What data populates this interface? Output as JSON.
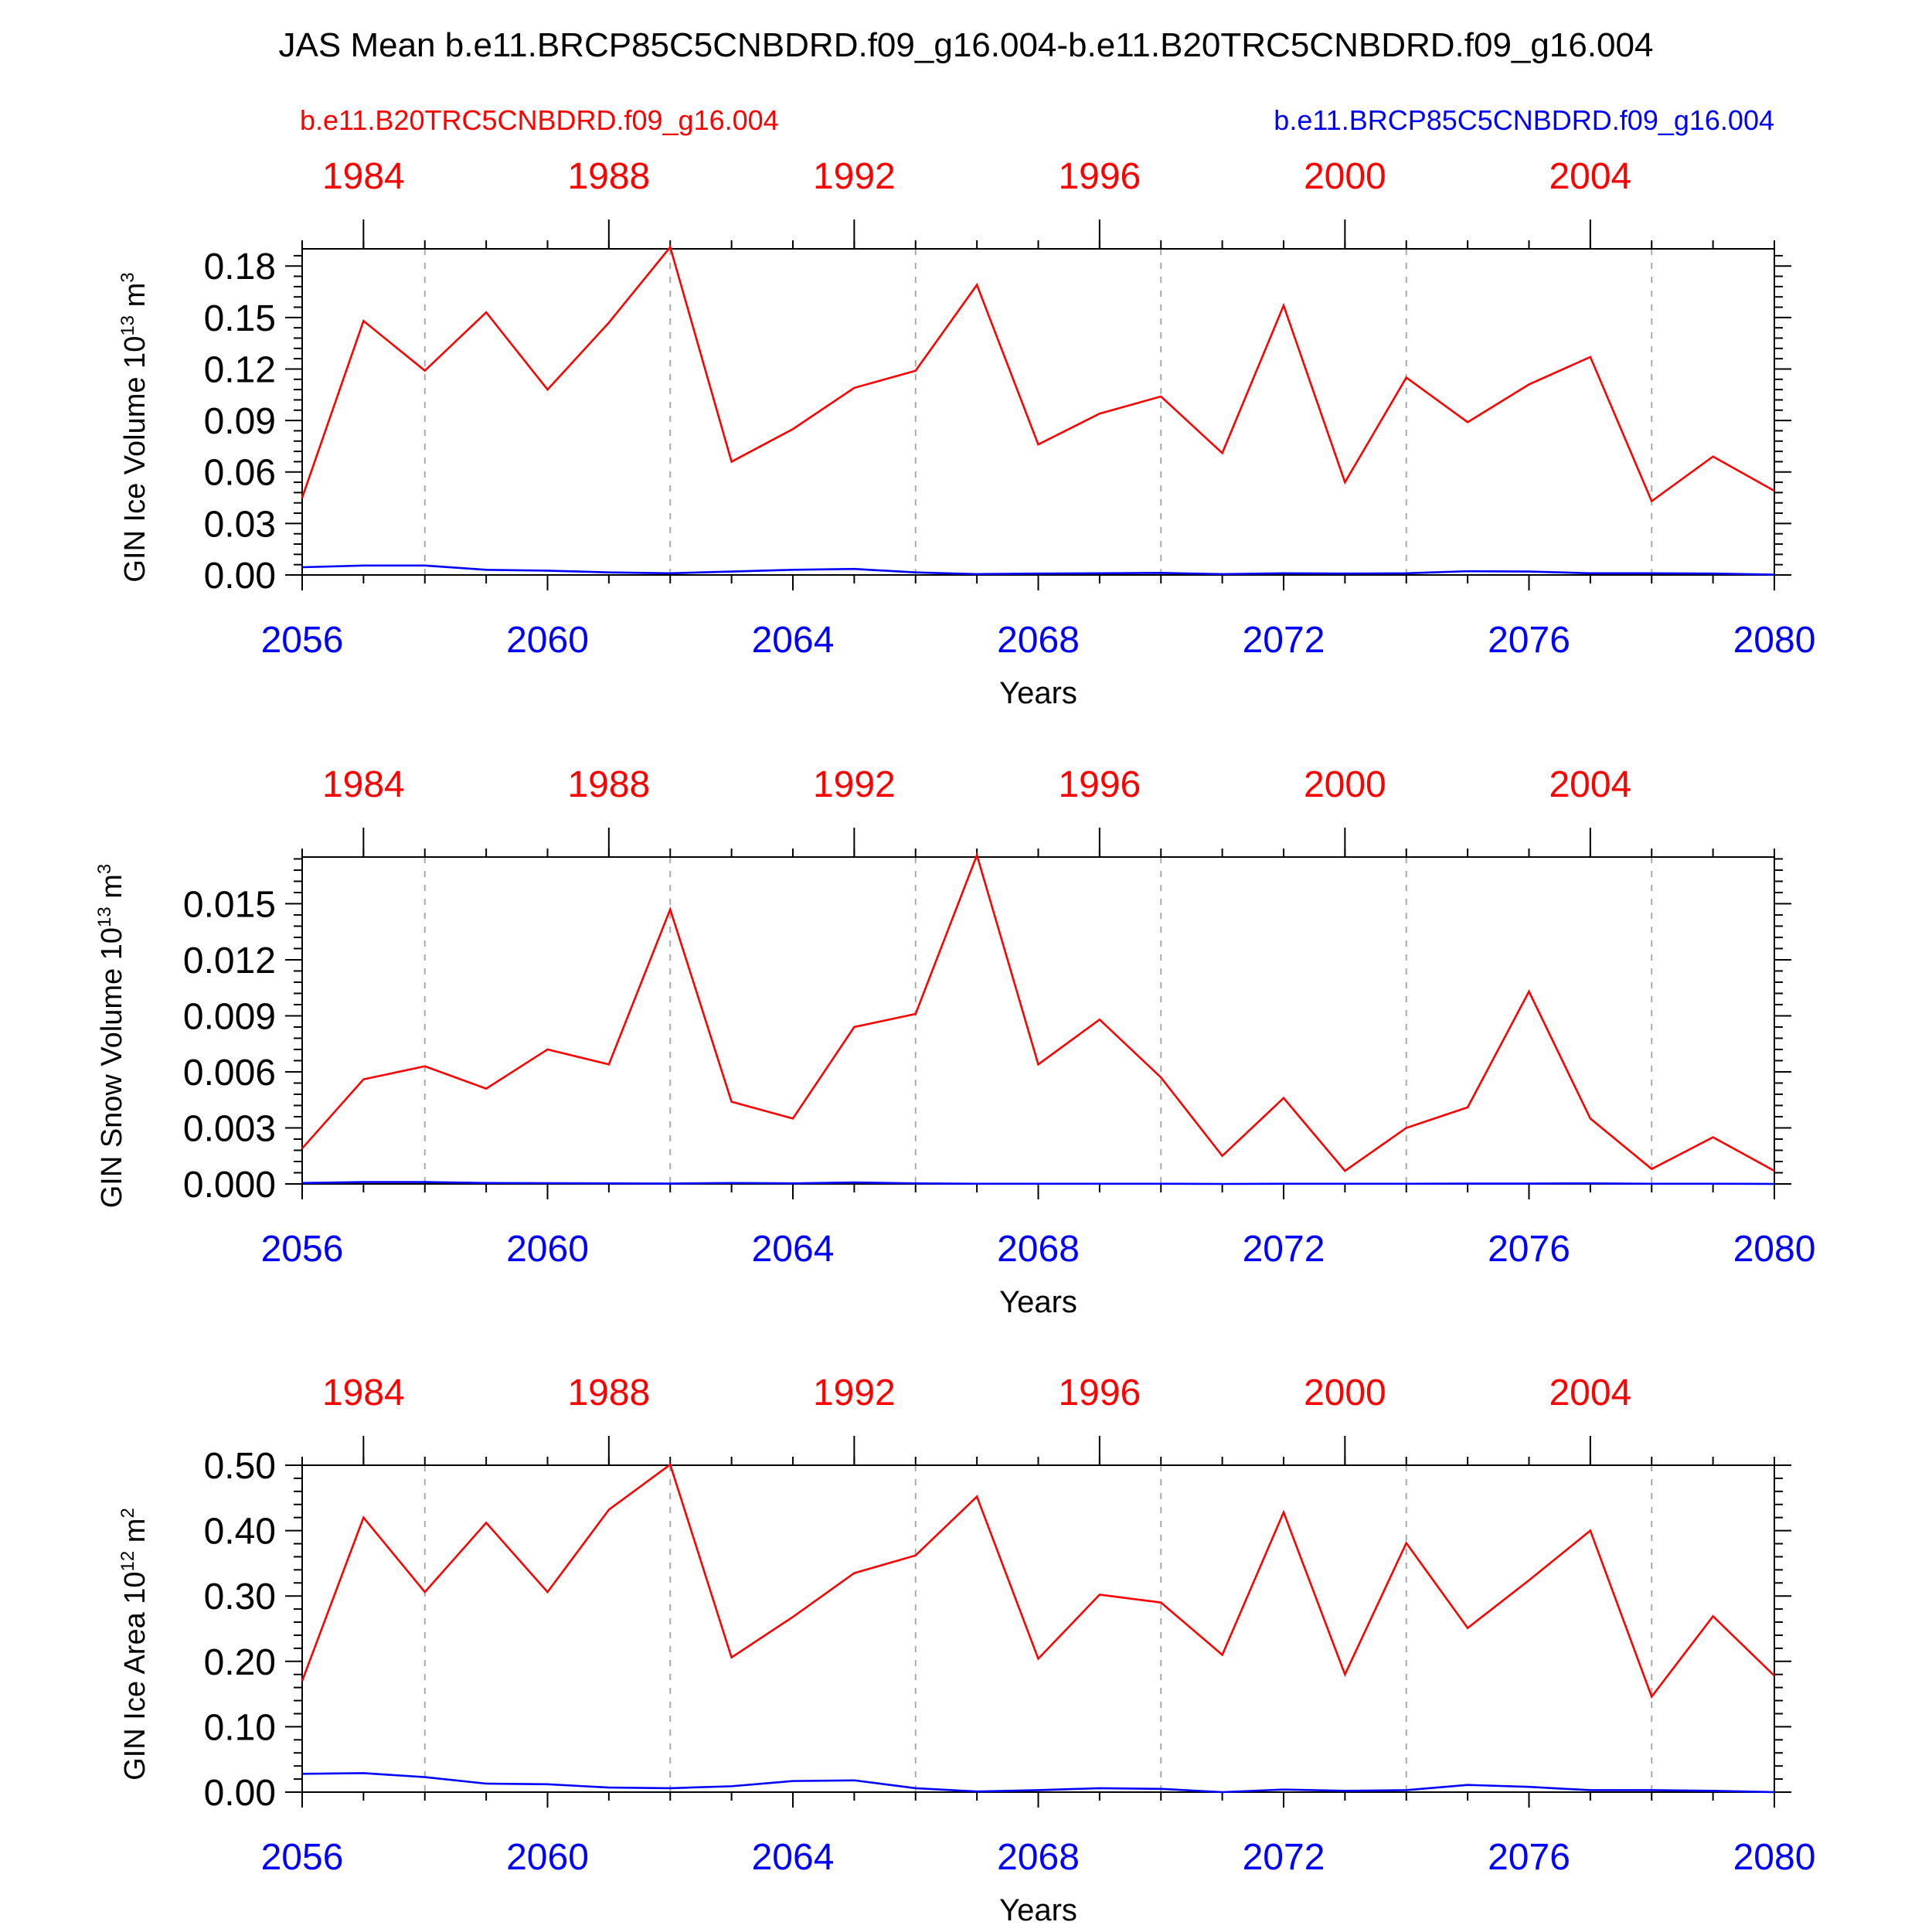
{
  "title": "JAS Mean b.e11.BRCP85C5CNBDRD.f09_g16.004-b.e11.B20TRC5CNBDRD.f09_g16.004",
  "legend": {
    "left": "b.e11.B20TRC5CNBDRD.f09_g16.004",
    "right": "b.e11.BRCP85C5CNBDRD.f09_g16.004"
  },
  "colors": {
    "hist": "#ff0000",
    "future": "#0000ff",
    "axis": "#000000",
    "grid": "#aaaaaa"
  },
  "chart_data": [
    {
      "type": "line",
      "ylabel": "GIN Ice Volume 10",
      "ylabel_exp": "13",
      "ylabel_unit": " m",
      "ylabel_unit_exp": "3",
      "xlabel": "Years",
      "ylim": [
        0,
        0.19
      ],
      "yticks": [
        0,
        0.03,
        0.06,
        0.09,
        0.12,
        0.15,
        0.18
      ],
      "yticklabels": [
        "0.00",
        "0.03",
        "0.06",
        "0.09",
        "0.12",
        "0.15",
        "0.18"
      ],
      "x": [
        2056,
        2057,
        2058,
        2059,
        2060,
        2061,
        2062,
        2063,
        2064,
        2065,
        2066,
        2067,
        2068,
        2069,
        2070,
        2071,
        2072,
        2073,
        2074,
        2075,
        2076,
        2077,
        2078,
        2079,
        2080
      ],
      "xticks": [
        2056,
        2060,
        2064,
        2068,
        2072,
        2076,
        2080
      ],
      "top_xticks": [
        1984,
        1988,
        1992,
        1996,
        2000,
        2004
      ],
      "series": [
        {
          "name": "b.e11.B20TRC5CNBDRD.f09_g16.004",
          "values": [
            0.045,
            0.148,
            0.119,
            0.153,
            0.108,
            0.147,
            0.191,
            0.066,
            0.085,
            0.109,
            0.119,
            0.169,
            0.076,
            0.094,
            0.104,
            0.071,
            0.157,
            0.054,
            0.115,
            0.089,
            0.111,
            0.127,
            0.043,
            0.069,
            0.049
          ]
        },
        {
          "name": "b.e11.BRCP85C5CNBDRD.f09_g16.004",
          "values": [
            0.0045,
            0.0055,
            0.0055,
            0.003,
            0.0025,
            0.0015,
            0.001,
            0.002,
            0.003,
            0.0035,
            0.0015,
            0.0005,
            0.0008,
            0.001,
            0.0012,
            0.0005,
            0.001,
            0.0008,
            0.001,
            0.0022,
            0.002,
            0.001,
            0.001,
            0.0008,
            0.0002
          ]
        }
      ]
    },
    {
      "type": "line",
      "ylabel": "GIN Snow Volume 10",
      "ylabel_exp": "13",
      "ylabel_unit": " m",
      "ylabel_unit_exp": "3",
      "xlabel": "Years",
      "ylim": [
        0,
        0.0175
      ],
      "yticks": [
        0,
        0.003,
        0.006,
        0.009,
        0.012,
        0.015
      ],
      "yticklabels": [
        "0.000",
        "0.003",
        "0.006",
        "0.009",
        "0.012",
        "0.015"
      ],
      "x": [
        2056,
        2057,
        2058,
        2059,
        2060,
        2061,
        2062,
        2063,
        2064,
        2065,
        2066,
        2067,
        2068,
        2069,
        2070,
        2071,
        2072,
        2073,
        2074,
        2075,
        2076,
        2077,
        2078,
        2079,
        2080
      ],
      "xticks": [
        2056,
        2060,
        2064,
        2068,
        2072,
        2076,
        2080
      ],
      "top_xticks": [
        1984,
        1988,
        1992,
        1996,
        2000,
        2004
      ],
      "series": [
        {
          "name": "b.e11.B20TRC5CNBDRD.f09_g16.004",
          "values": [
            0.0019,
            0.0056,
            0.0063,
            0.0051,
            0.0072,
            0.0064,
            0.0147,
            0.0044,
            0.0035,
            0.0084,
            0.0091,
            0.0176,
            0.0064,
            0.0088,
            0.0057,
            0.0015,
            0.0046,
            0.0007,
            0.003,
            0.0041,
            0.0103,
            0.0035,
            0.0008,
            0.0025,
            0.0007
          ]
        },
        {
          "name": "b.e11.BRCP85C5CNBDRD.f09_g16.004",
          "values": [
            5e-05,
            0.0001,
            0.0001,
            5e-05,
            4e-05,
            3e-05,
            2e-05,
            5e-05,
            3e-05,
            8e-05,
            3e-05,
            1e-05,
            1e-05,
            1e-05,
            1e-05,
            0.0,
            1e-05,
            1e-05,
            1e-05,
            2e-05,
            2e-05,
            3e-05,
            1e-05,
            1e-05,
            0.0
          ]
        }
      ]
    },
    {
      "type": "line",
      "ylabel": "GIN Ice Area 10",
      "ylabel_exp": "12",
      "ylabel_unit": " m",
      "ylabel_unit_exp": "2",
      "xlabel": "Years",
      "ylim": [
        0,
        0.5
      ],
      "yticks": [
        0,
        0.1,
        0.2,
        0.3,
        0.4,
        0.5
      ],
      "yticklabels": [
        "0.00",
        "0.10",
        "0.20",
        "0.30",
        "0.40",
        "0.50"
      ],
      "x": [
        2056,
        2057,
        2058,
        2059,
        2060,
        2061,
        2062,
        2063,
        2064,
        2065,
        2066,
        2067,
        2068,
        2069,
        2070,
        2071,
        2072,
        2073,
        2074,
        2075,
        2076,
        2077,
        2078,
        2079,
        2080
      ],
      "xticks": [
        2056,
        2060,
        2064,
        2068,
        2072,
        2076,
        2080
      ],
      "top_xticks": [
        1984,
        1988,
        1992,
        1996,
        2000,
        2004
      ],
      "series": [
        {
          "name": "b.e11.B20TRC5CNBDRD.f09_g16.004",
          "values": [
            0.17,
            0.42,
            0.306,
            0.412,
            0.306,
            0.432,
            0.501,
            0.206,
            0.268,
            0.335,
            0.362,
            0.452,
            0.204,
            0.302,
            0.29,
            0.21,
            0.428,
            0.18,
            0.381,
            0.251,
            0.324,
            0.4,
            0.146,
            0.269,
            0.178
          ]
        },
        {
          "name": "b.e11.BRCP85C5CNBDRD.f09_g16.004",
          "values": [
            0.028,
            0.029,
            0.023,
            0.013,
            0.012,
            0.007,
            0.006,
            0.009,
            0.017,
            0.018,
            0.006,
            0.001,
            0.003,
            0.006,
            0.005,
            0.0,
            0.004,
            0.002,
            0.003,
            0.011,
            0.008,
            0.003,
            0.003,
            0.002,
            0.0
          ]
        }
      ]
    }
  ]
}
